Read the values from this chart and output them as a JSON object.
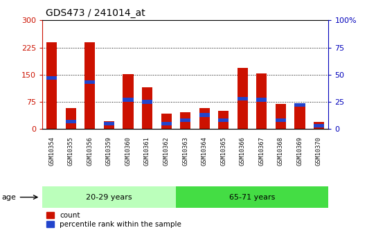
{
  "title": "GDS473 / 241014_at",
  "samples": [
    "GSM10354",
    "GSM10355",
    "GSM10356",
    "GSM10359",
    "GSM10360",
    "GSM10361",
    "GSM10362",
    "GSM10363",
    "GSM10364",
    "GSM10365",
    "GSM10366",
    "GSM10367",
    "GSM10368",
    "GSM10369",
    "GSM10370"
  ],
  "count": [
    240,
    57,
    240,
    22,
    152,
    115,
    42,
    47,
    57,
    50,
    168,
    154,
    70,
    72,
    20
  ],
  "percentile": [
    47,
    7,
    43,
    5,
    27,
    25,
    5,
    8,
    13,
    8,
    28,
    27,
    8,
    22,
    3
  ],
  "groups": [
    {
      "label": "20-29 years",
      "start": 0,
      "end": 7,
      "color": "#bbffbb"
    },
    {
      "label": "65-71 years",
      "start": 7,
      "end": 15,
      "color": "#44dd44"
    }
  ],
  "ylim_left": [
    0,
    300
  ],
  "ylim_right": [
    0,
    100
  ],
  "yticks_left": [
    0,
    75,
    150,
    225,
    300
  ],
  "yticks_right": [
    0,
    25,
    50,
    75,
    100
  ],
  "bar_color_red": "#cc1100",
  "bar_color_blue": "#2244cc",
  "left_axis_color": "#cc1100",
  "right_axis_color": "#0000bb",
  "background_color": "#ffffff",
  "xticklabel_bg": "#cccccc",
  "legend_count": "count",
  "legend_percentile": "percentile rank within the sample",
  "blue_seg_halfheight": 5
}
